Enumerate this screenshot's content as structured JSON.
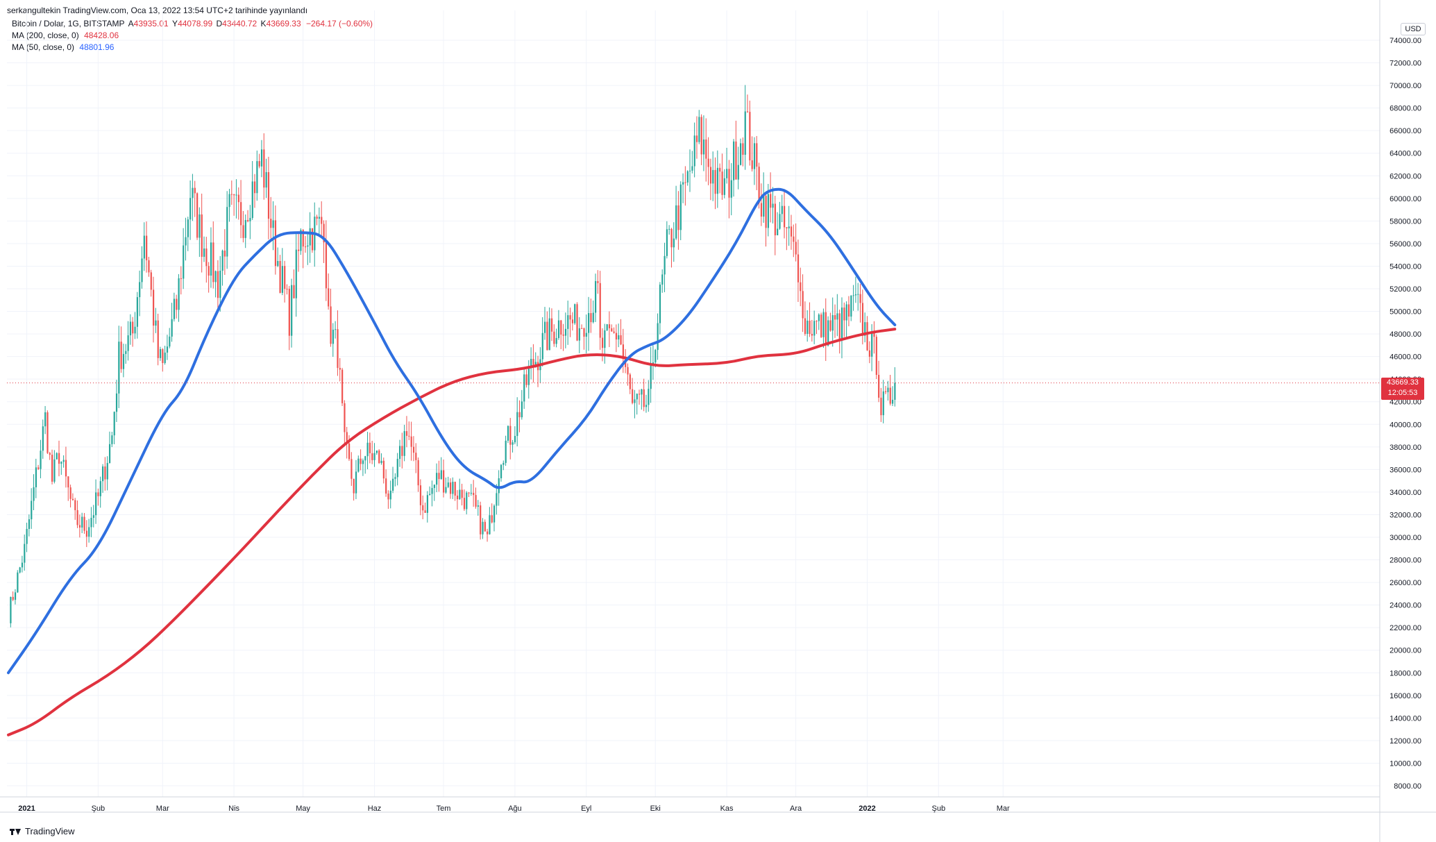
{
  "header": {
    "attribution": "serkangultekin TradingView.com, Oca 13, 2022 13:54 UTC+2 tarihinde yayınlandı"
  },
  "legend": {
    "symbol": "Bitcoin / Dolar, 1G, BITSTAMP",
    "o_label": "A",
    "o_value": "43935.01",
    "h_label": "Y",
    "h_value": "44078.99",
    "l_label": "D",
    "l_value": "43440.72",
    "c_label": "K",
    "c_value": "43669.33",
    "change": "−264.17 (−0.60%)",
    "ma200_label": "MA (200, close, 0)",
    "ma200_value": "48428.06",
    "ma50_label": "MA (50, close, 0)",
    "ma50_value": "48801.96"
  },
  "price_axis": {
    "currency": "USD"
  },
  "last_price": {
    "price": "43669.33",
    "countdown": "12:05:53"
  },
  "footer": {
    "brand": "TradingView"
  },
  "colors": {
    "up": "#26a69a",
    "down": "#ef5350",
    "ma200": "#e0323f",
    "ma50": "#2e6fe0",
    "grid": "#f0f3fa",
    "axis_text": "#131722"
  },
  "chart_data": {
    "type": "candlestick",
    "title": "Bitcoin / Dolar, 1G, BITSTAMP",
    "ylim": [
      8000,
      75000
    ],
    "y_ticks": [
      8000,
      10000,
      12000,
      14000,
      16000,
      18000,
      20000,
      22000,
      24000,
      26000,
      28000,
      30000,
      32000,
      34000,
      36000,
      38000,
      40000,
      42000,
      44000,
      46000,
      48000,
      50000,
      52000,
      54000,
      56000,
      58000,
      60000,
      62000,
      64000,
      66000,
      68000,
      70000,
      72000,
      74000
    ],
    "x_ticks": [
      {
        "label": "2021",
        "date": "2021-01-01"
      },
      {
        "label": "Şub",
        "date": "2021-02-01"
      },
      {
        "label": "Mar",
        "date": "2021-03-01"
      },
      {
        "label": "Nis",
        "date": "2021-04-01"
      },
      {
        "label": "May",
        "date": "2021-05-01"
      },
      {
        "label": "Haz",
        "date": "2021-06-01"
      },
      {
        "label": "Tem",
        "date": "2021-07-01"
      },
      {
        "label": "Ağu",
        "date": "2021-08-01"
      },
      {
        "label": "Eyl",
        "date": "2021-09-01"
      },
      {
        "label": "Eki",
        "date": "2021-10-01"
      },
      {
        "label": "Kas",
        "date": "2021-11-01"
      },
      {
        "label": "Ara",
        "date": "2021-12-01"
      },
      {
        "label": "2022",
        "date": "2022-01-01"
      },
      {
        "label": "Şub",
        "date": "2022-02-01"
      },
      {
        "label": "Mar",
        "date": "2022-03-01"
      }
    ],
    "price_anchors": [
      [
        "2020-12-24",
        23200
      ],
      [
        "2020-12-31",
        28900
      ],
      [
        "2021-01-07",
        38000
      ],
      [
        "2021-01-09",
        40500
      ],
      [
        "2021-01-12",
        35000
      ],
      [
        "2021-01-15",
        37500
      ],
      [
        "2021-01-22",
        31500
      ],
      [
        "2021-01-27",
        30800
      ],
      [
        "2021-02-01",
        33500
      ],
      [
        "2021-02-07",
        39000
      ],
      [
        "2021-02-10",
        46000
      ],
      [
        "2021-02-16",
        48000
      ],
      [
        "2021-02-21",
        57000
      ],
      [
        "2021-02-27",
        46000
      ],
      [
        "2021-03-01",
        45000
      ],
      [
        "2021-03-07",
        50500
      ],
      [
        "2021-03-13",
        60500
      ],
      [
        "2021-03-18",
        56500
      ],
      [
        "2021-03-25",
        52500
      ],
      [
        "2021-03-30",
        58800
      ],
      [
        "2021-04-05",
        58500
      ],
      [
        "2021-04-13",
        63500
      ],
      [
        "2021-04-18",
        56500
      ],
      [
        "2021-04-25",
        49500
      ],
      [
        "2021-04-30",
        56500
      ],
      [
        "2021-05-03",
        57000
      ],
      [
        "2021-05-08",
        57500
      ],
      [
        "2021-05-10",
        58000
      ],
      [
        "2021-05-12",
        49000
      ],
      [
        "2021-05-16",
        46500
      ],
      [
        "2021-05-19",
        38000
      ],
      [
        "2021-05-23",
        34500
      ],
      [
        "2021-05-27",
        37500
      ],
      [
        "2021-06-03",
        37000
      ],
      [
        "2021-06-08",
        33000
      ],
      [
        "2021-06-15",
        40000
      ],
      [
        "2021-06-22",
        32500
      ],
      [
        "2021-06-29",
        35500
      ],
      [
        "2021-07-07",
        34000
      ],
      [
        "2021-07-14",
        32800
      ],
      [
        "2021-07-20",
        29800
      ],
      [
        "2021-07-26",
        37500
      ],
      [
        "2021-08-01",
        39800
      ],
      [
        "2021-08-07",
        44500
      ],
      [
        "2021-08-14",
        47500
      ],
      [
        "2021-08-22",
        49300
      ],
      [
        "2021-08-29",
        48800
      ],
      [
        "2021-09-06",
        51500
      ],
      [
        "2021-09-07",
        46800
      ],
      [
        "2021-09-15",
        48200
      ],
      [
        "2021-09-21",
        41500
      ],
      [
        "2021-09-28",
        41800
      ],
      [
        "2021-10-01",
        48000
      ],
      [
        "2021-10-06",
        55500
      ],
      [
        "2021-10-15",
        61500
      ],
      [
        "2021-10-20",
        65500
      ],
      [
        "2021-10-28",
        61000
      ],
      [
        "2021-11-01",
        61000
      ],
      [
        "2021-11-09",
        66800
      ],
      [
        "2021-11-16",
        60000
      ],
      [
        "2021-11-21",
        58500
      ],
      [
        "2021-11-27",
        57000
      ],
      [
        "2021-12-03",
        53500
      ],
      [
        "2021-12-04",
        49000
      ],
      [
        "2021-12-14",
        48500
      ],
      [
        "2021-12-21",
        48900
      ],
      [
        "2021-12-27",
        50700
      ],
      [
        "2022-01-01",
        47700
      ],
      [
        "2022-01-05",
        45800
      ],
      [
        "2022-01-07",
        41500
      ],
      [
        "2022-01-10",
        41900
      ],
      [
        "2022-01-13",
        43669
      ]
    ],
    "series": [
      {
        "name": "MA (200, close, 0)",
        "color": "#e0323f",
        "last_value": 48428.06,
        "points": [
          [
            "2020-12-24",
            12500
          ],
          [
            "2021-01-05",
            13500
          ],
          [
            "2021-01-20",
            15800
          ],
          [
            "2021-02-05",
            17700
          ],
          [
            "2021-02-20",
            20000
          ],
          [
            "2021-03-05",
            22500
          ],
          [
            "2021-03-20",
            25600
          ],
          [
            "2021-04-05",
            29000
          ],
          [
            "2021-04-20",
            32300
          ],
          [
            "2021-05-05",
            35500
          ],
          [
            "2021-05-20",
            38500
          ],
          [
            "2021-06-05",
            40600
          ],
          [
            "2021-06-20",
            42300
          ],
          [
            "2021-07-05",
            43800
          ],
          [
            "2021-07-20",
            44600
          ],
          [
            "2021-08-05",
            44900
          ],
          [
            "2021-08-20",
            45700
          ],
          [
            "2021-09-01",
            46200
          ],
          [
            "2021-09-15",
            46100
          ],
          [
            "2021-10-01",
            45100
          ],
          [
            "2021-10-15",
            45300
          ],
          [
            "2021-11-01",
            45400
          ],
          [
            "2021-11-15",
            46100
          ],
          [
            "2021-12-01",
            46200
          ],
          [
            "2021-12-15",
            47200
          ],
          [
            "2022-01-01",
            48100
          ],
          [
            "2022-01-13",
            48428
          ]
        ]
      },
      {
        "name": "MA (50, close, 0)",
        "color": "#2e6fe0",
        "last_value": 48801.96,
        "points": [
          [
            "2020-12-24",
            18000
          ],
          [
            "2021-01-05",
            21500
          ],
          [
            "2021-01-20",
            26500
          ],
          [
            "2021-02-01",
            29000
          ],
          [
            "2021-02-15",
            35000
          ],
          [
            "2021-03-01",
            41000
          ],
          [
            "2021-03-10",
            43000
          ],
          [
            "2021-03-20",
            48000
          ],
          [
            "2021-04-01",
            53000
          ],
          [
            "2021-04-10",
            55000
          ],
          [
            "2021-04-20",
            56900
          ],
          [
            "2021-05-01",
            57000
          ],
          [
            "2021-05-10",
            56800
          ],
          [
            "2021-05-20",
            53500
          ],
          [
            "2021-06-01",
            49000
          ],
          [
            "2021-06-10",
            45500
          ],
          [
            "2021-06-20",
            42600
          ],
          [
            "2021-07-01",
            38500
          ],
          [
            "2021-07-10",
            36100
          ],
          [
            "2021-07-20",
            35000
          ],
          [
            "2021-07-25",
            34200
          ],
          [
            "2021-08-01",
            35000
          ],
          [
            "2021-08-08",
            34800
          ],
          [
            "2021-08-20",
            37800
          ],
          [
            "2021-09-01",
            40500
          ],
          [
            "2021-09-10",
            43500
          ],
          [
            "2021-09-20",
            46200
          ],
          [
            "2021-09-28",
            47000
          ],
          [
            "2021-10-05",
            47500
          ],
          [
            "2021-10-15",
            49500
          ],
          [
            "2021-10-25",
            52500
          ],
          [
            "2021-11-05",
            56000
          ],
          [
            "2021-11-15",
            60000
          ],
          [
            "2021-11-20",
            60800
          ],
          [
            "2021-11-27",
            60800
          ],
          [
            "2021-12-05",
            59000
          ],
          [
            "2021-12-15",
            57000
          ],
          [
            "2021-12-25",
            54000
          ],
          [
            "2022-01-05",
            50500
          ],
          [
            "2022-01-13",
            48802
          ]
        ]
      }
    ],
    "last_price": 43669.33,
    "grid": true,
    "legend_position": "top-left"
  }
}
